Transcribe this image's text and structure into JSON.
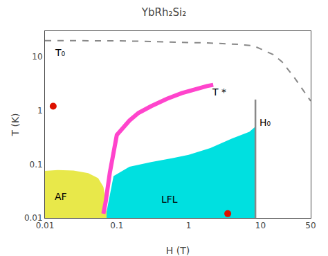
{
  "chart_data": {
    "type": "line",
    "title": "YbRh₂Si₂",
    "x_label": "H (T)",
    "y_label": "T (K)",
    "log": true,
    "grid": false,
    "xlim": [
      0.01,
      50
    ],
    "ylim": [
      0.01,
      30
    ],
    "xticks": [
      0.01,
      0.1,
      1,
      10,
      50
    ],
    "yticks": [
      0.01,
      0.1,
      1,
      10
    ],
    "series": [
      {
        "type": "area",
        "color": "#e8e84a",
        "x": [
          0.01,
          0.01,
          0.015,
          0.025,
          0.04,
          0.055,
          0.065,
          0.07,
          0.072,
          0.072,
          0.01
        ],
        "values": [
          0.013,
          0.075,
          0.078,
          0.076,
          0.068,
          0.055,
          0.038,
          0.022,
          0.013,
          0.01,
          0.01
        ]
      },
      {
        "type": "area",
        "color": "#00e0e0",
        "x": [
          0.072,
          0.09,
          0.15,
          0.3,
          0.6,
          1.0,
          2.0,
          4.0,
          7.0,
          8.5,
          8.5,
          0.072
        ],
        "values": [
          0.013,
          0.06,
          0.09,
          0.11,
          0.13,
          0.15,
          0.2,
          0.3,
          0.4,
          0.5,
          0.01,
          0.01
        ]
      },
      {
        "type": "line",
        "color": "#888888",
        "line_style": "dashed",
        "x": [
          0.01,
          0.02,
          0.05,
          0.1,
          0.2,
          0.5,
          1,
          2,
          5,
          8,
          10,
          15,
          20,
          30,
          50
        ],
        "values": [
          20,
          20,
          20,
          19.8,
          19.5,
          19,
          18.5,
          18,
          17,
          16,
          14,
          11,
          8,
          4,
          1.5
        ]
      },
      {
        "type": "line",
        "color": "#ff44cc",
        "line_style": "solid",
        "x": [
          0.065,
          0.07,
          0.08,
          0.09,
          0.1,
          0.15,
          0.2,
          0.3,
          0.5,
          0.8,
          1.2,
          1.8,
          2.2
        ],
        "values": [
          0.012,
          0.02,
          0.07,
          0.18,
          0.35,
          0.65,
          0.9,
          1.2,
          1.65,
          2.1,
          2.5,
          2.85,
          3.0
        ]
      },
      {
        "type": "line",
        "color": "#888888",
        "line_style": "solid",
        "x": [
          8.5,
          8.5
        ],
        "values": [
          0.01,
          1.6
        ]
      },
      {
        "type": "scatter",
        "color": "#dd1100",
        "marker": "circle",
        "x": [
          0.013,
          3.5
        ],
        "values": [
          1.2,
          0.012
        ]
      }
    ],
    "annotations": [
      {
        "text": "T₀",
        "x": 0.013,
        "y": 12
      },
      {
        "text": "T *",
        "x": 2.0,
        "y": 2.2
      },
      {
        "text": "H₀",
        "x": 9.2,
        "y": 0.6
      },
      {
        "text": "AF",
        "x": 0.013,
        "y": 0.025
      },
      {
        "text": "LFL",
        "x": 0.4,
        "y": 0.022
      }
    ]
  }
}
